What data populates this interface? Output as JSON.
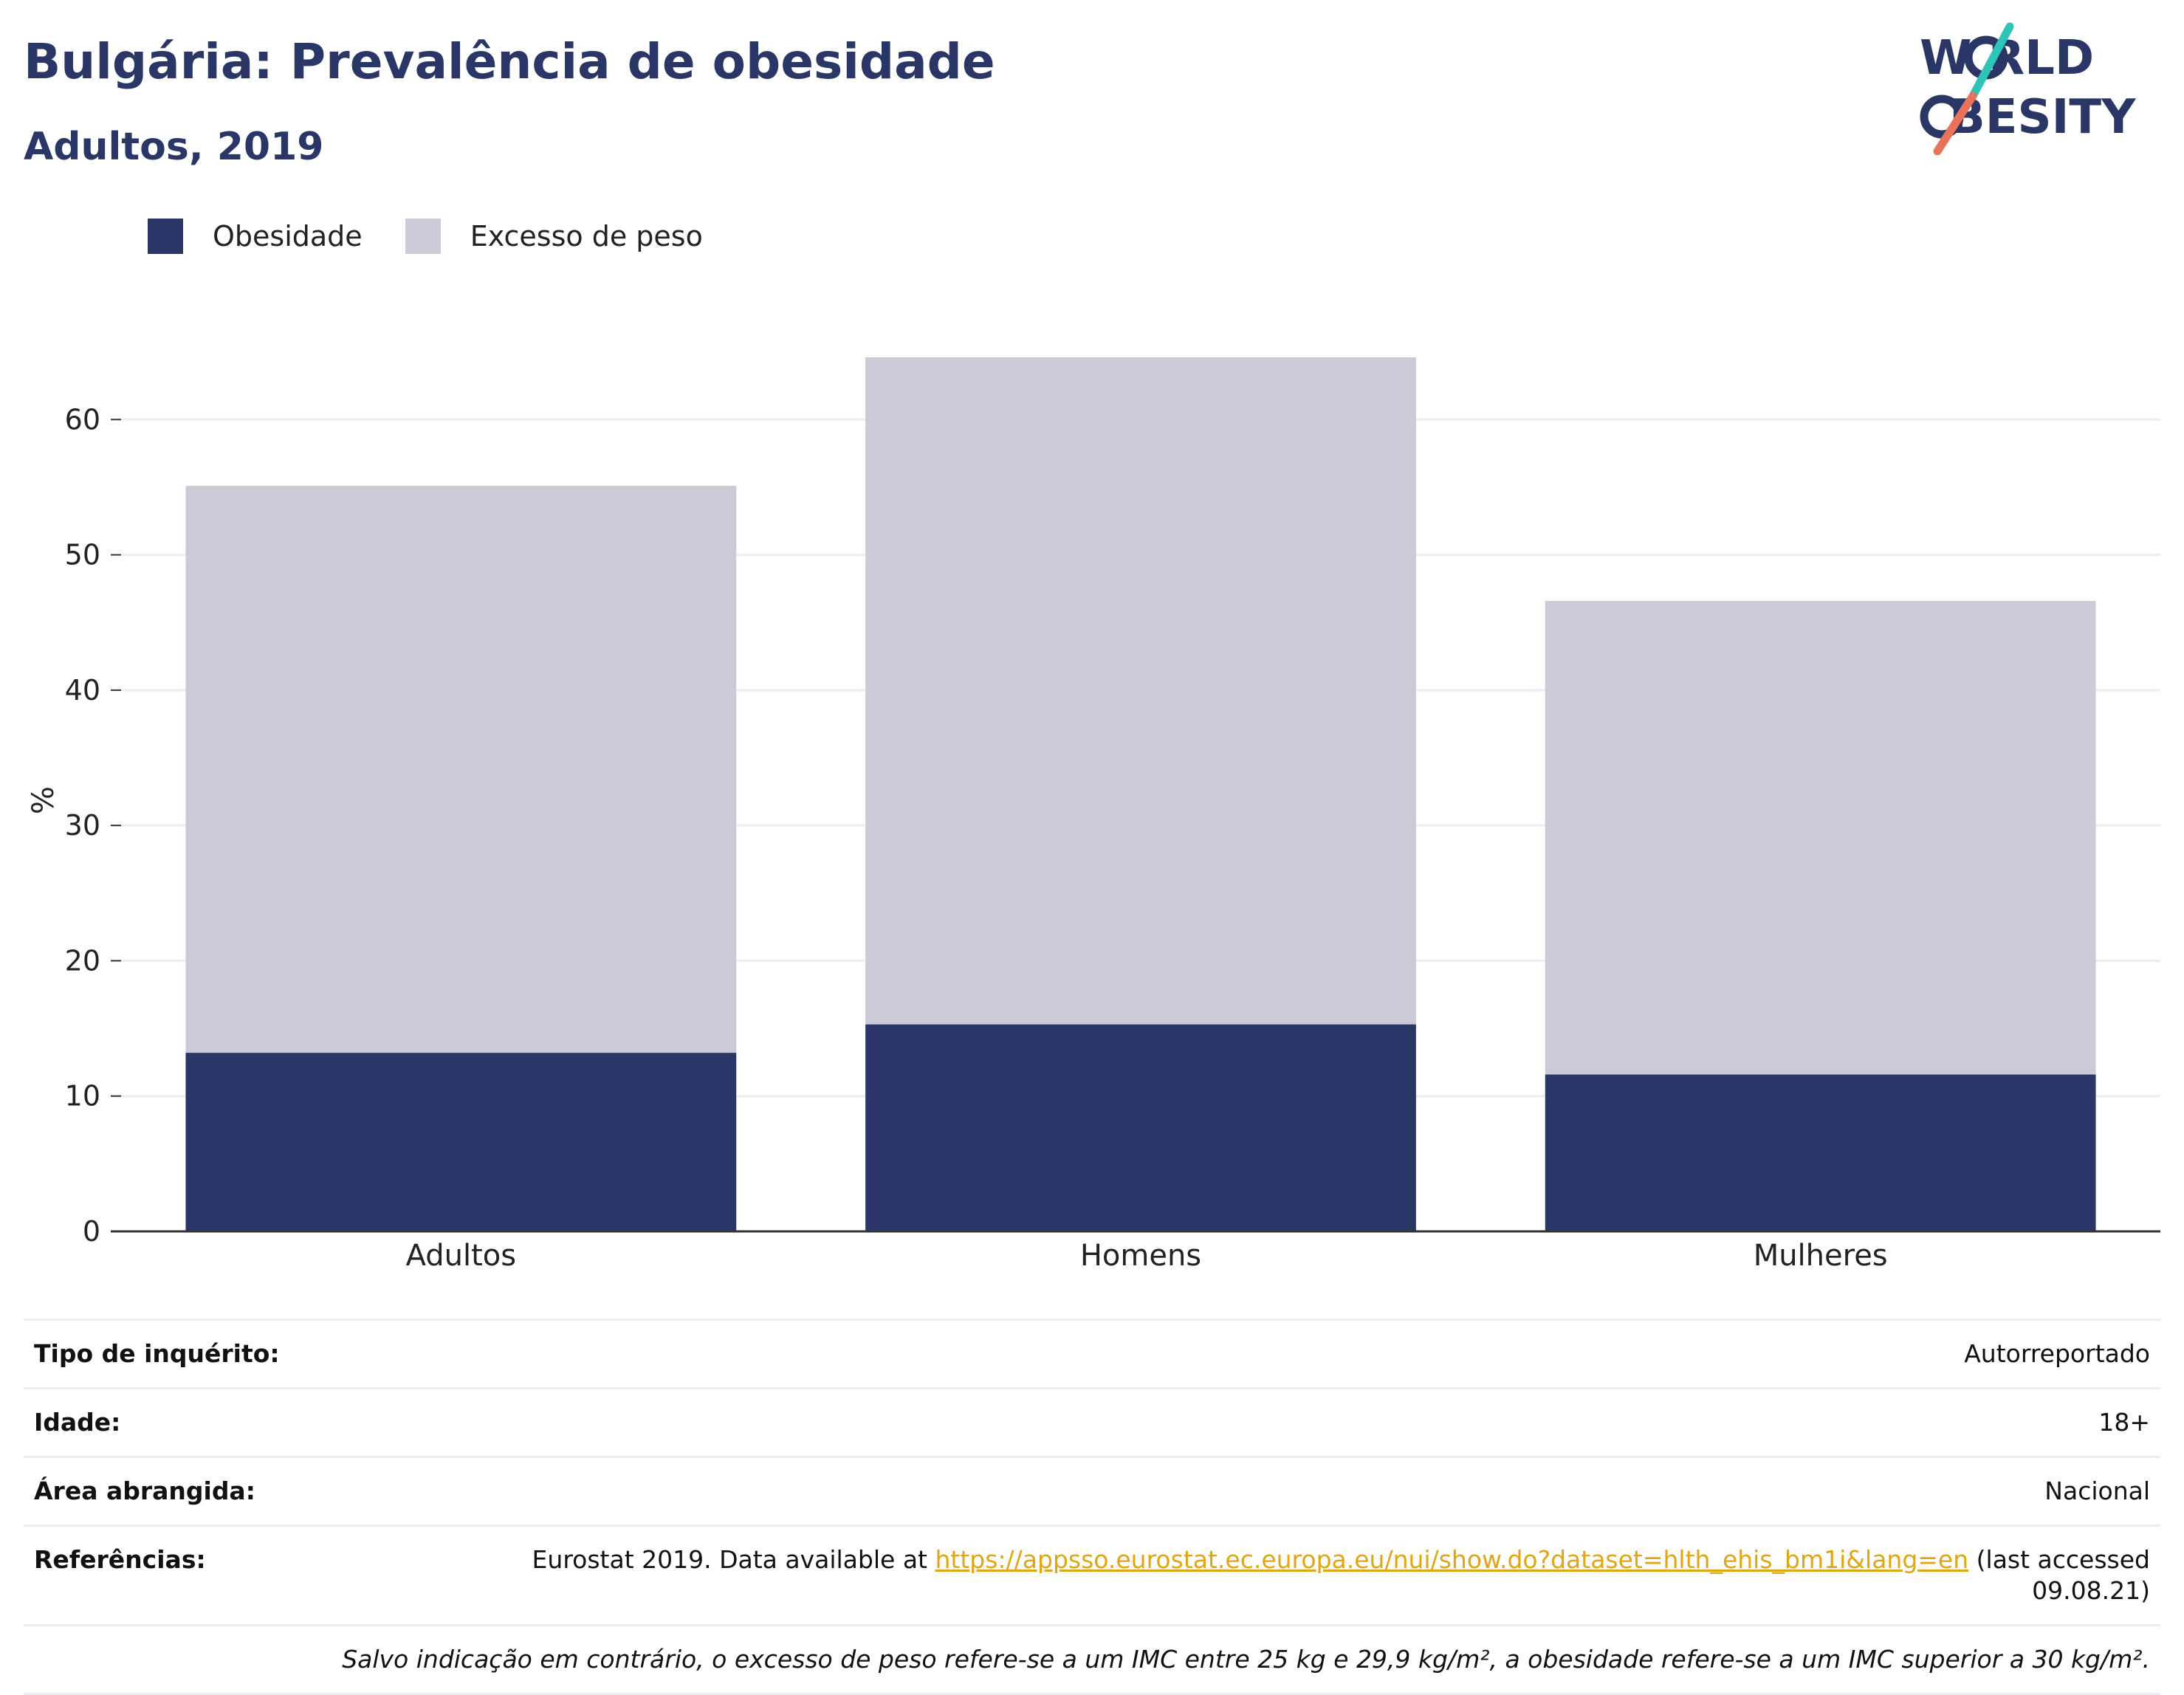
{
  "header": {
    "title": "Bulgária: Prevalência de obesidade",
    "subtitle": "Adultos, 2019"
  },
  "logo": {
    "line1": "W RLD",
    "line2": "BESITY",
    "alt": "WORLD OBESITY",
    "icon": "world-obesity-logo",
    "slash_colors": [
      "#2ec4b6",
      "#e8735a"
    ],
    "text_color": "#2a3766"
  },
  "legend": [
    {
      "label": "Obesidade",
      "color": "#2a3766"
    },
    {
      "label": "Excesso de peso",
      "color": "#cacbd7"
    }
  ],
  "chart_data": {
    "type": "bar",
    "stacked": true,
    "categories": [
      "Adultos",
      "Homens",
      "Mulheres"
    ],
    "series": [
      {
        "name": "Obesidade",
        "color": "#2a3766",
        "values": [
          13.2,
          15.3,
          11.6
        ]
      },
      {
        "name": "Excesso de peso",
        "color": "#cacbd7",
        "values": [
          41.9,
          49.3,
          35.0
        ]
      }
    ],
    "ylabel": "%",
    "ylim": [
      0,
      67
    ],
    "yticks": [
      0,
      10,
      20,
      30,
      40,
      50,
      60
    ],
    "grid": true,
    "legend_position": "top-left"
  },
  "info": {
    "rows": [
      {
        "label": "Tipo de inquérito:",
        "value": "Autorreportado"
      },
      {
        "label": "Idade:",
        "value": "18+"
      },
      {
        "label": "Área abrangida:",
        "value": "Nacional"
      }
    ],
    "references": {
      "label": "Referências:",
      "prefix": "Eurostat 2019. Data available at",
      "link": "https://appsso.eurostat.ec.europa.eu/nui/show.do?dataset=hlth_ehis_bm1i&lang=en",
      "suffix": "(last accessed 09.08.21)"
    },
    "note": "Salvo indicação em contrário, o excesso de peso refere-se a um IMC entre 25 kg e 29,9 kg/m², a obesidade refere-se a um IMC superior a 30 kg/m²."
  }
}
